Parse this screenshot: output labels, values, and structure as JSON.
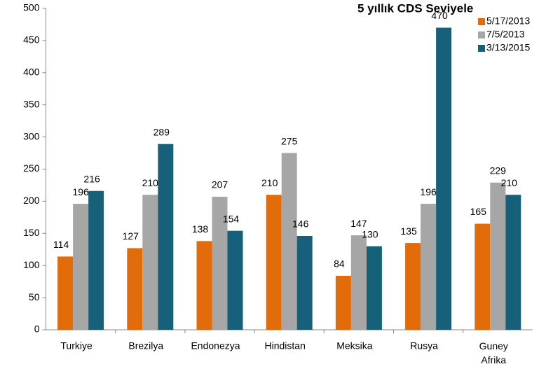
{
  "chart_data": {
    "type": "bar",
    "title": "5 yıllık CDS Seviyele",
    "categories": [
      "Turkiye",
      "Brezilya",
      "Endonezya",
      "Hindistan",
      "Meksika",
      "Rusya",
      "Guney Afrika"
    ],
    "series": [
      {
        "name": "5/17/2013",
        "color": "#e36c0a",
        "values": [
          114,
          127,
          138,
          210,
          84,
          135,
          165
        ]
      },
      {
        "name": "7/5/2013",
        "color": "#a6a6a6",
        "values": [
          196,
          210,
          207,
          275,
          147,
          196,
          229
        ]
      },
      {
        "name": "3/13/2015",
        "color": "#17607a",
        "values": [
          216,
          289,
          154,
          146,
          130,
          470,
          210
        ]
      }
    ],
    "ylim": [
      0,
      500
    ],
    "yticks": [
      0,
      50,
      100,
      150,
      200,
      250,
      300,
      350,
      400,
      450,
      500
    ],
    "grid": false,
    "legend": "top-right"
  }
}
